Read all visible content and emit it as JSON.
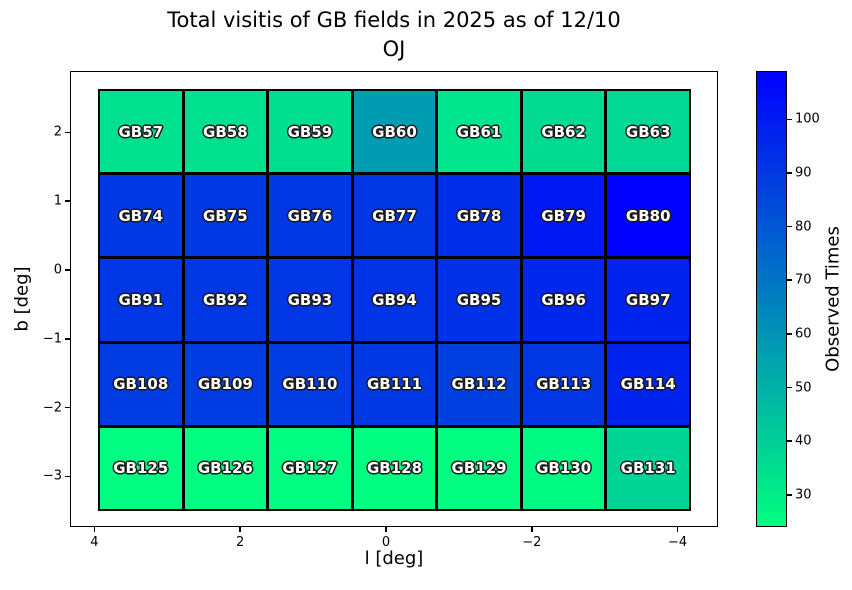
{
  "title": {
    "line1": "Total visitis of GB fields in 2025 as of 12/10",
    "line2": "OJ"
  },
  "axes": {
    "xlabel": "l [deg]",
    "ylabel": "b [deg]",
    "x_tick_labels": [
      "4",
      "2",
      "0",
      "−2",
      "−4"
    ],
    "y_tick_labels": [
      "2",
      "1",
      "0",
      "−1",
      "−2",
      "−3"
    ]
  },
  "colorbar": {
    "label": "Observed Times",
    "tick_labels": [
      "100",
      "90",
      "80",
      "70",
      "60",
      "50",
      "40",
      "30"
    ],
    "tick_values": [
      100,
      90,
      80,
      70,
      60,
      50,
      40,
      30
    ],
    "vmin": 24,
    "vmax": 109,
    "color_low": "#00ff80",
    "color_high": "#0000ff",
    "colormap": "winter_r"
  },
  "chart_data": {
    "type": "heatmap",
    "title": "Total visitis of GB fields in 2025 as of 12/10 OJ",
    "xlabel": "l [deg]",
    "ylabel": "b [deg]",
    "colorbar_label": "Observed Times",
    "colormap": "winter_r",
    "vmin": 24,
    "vmax": 109,
    "xlim": [
      4.3,
      -4.6
    ],
    "ylim": [
      -3.7,
      2.9
    ],
    "x_tick_values": [
      4,
      2,
      0,
      -2,
      -4
    ],
    "y_tick_values": [
      2,
      1,
      0,
      -1,
      -2,
      -3
    ],
    "grid_shape": [
      5,
      7
    ],
    "legend_position": "right-colorbar",
    "rows": [
      {
        "fields": [
          {
            "label": "GB57",
            "value": 34
          },
          {
            "label": "GB58",
            "value": 34
          },
          {
            "label": "GB59",
            "value": 35
          },
          {
            "label": "GB60",
            "value": 57
          },
          {
            "label": "GB61",
            "value": 33
          },
          {
            "label": "GB62",
            "value": 36
          },
          {
            "label": "GB63",
            "value": 37
          }
        ]
      },
      {
        "fields": [
          {
            "label": "GB74",
            "value": 90
          },
          {
            "label": "GB75",
            "value": 90
          },
          {
            "label": "GB76",
            "value": 90
          },
          {
            "label": "GB77",
            "value": 91
          },
          {
            "label": "GB78",
            "value": 94
          },
          {
            "label": "GB79",
            "value": 101
          },
          {
            "label": "GB80",
            "value": 109
          }
        ]
      },
      {
        "fields": [
          {
            "label": "GB91",
            "value": 91
          },
          {
            "label": "GB92",
            "value": 91
          },
          {
            "label": "GB93",
            "value": 91
          },
          {
            "label": "GB94",
            "value": 92
          },
          {
            "label": "GB95",
            "value": 93
          },
          {
            "label": "GB96",
            "value": 96
          },
          {
            "label": "GB97",
            "value": 97
          }
        ]
      },
      {
        "fields": [
          {
            "label": "GB108",
            "value": 89
          },
          {
            "label": "GB109",
            "value": 89
          },
          {
            "label": "GB110",
            "value": 89
          },
          {
            "label": "GB111",
            "value": 90
          },
          {
            "label": "GB112",
            "value": 88
          },
          {
            "label": "GB113",
            "value": 91
          },
          {
            "label": "GB114",
            "value": 97
          }
        ]
      },
      {
        "fields": [
          {
            "label": "GB125",
            "value": 25
          },
          {
            "label": "GB126",
            "value": 25
          },
          {
            "label": "GB127",
            "value": 25
          },
          {
            "label": "GB128",
            "value": 24
          },
          {
            "label": "GB129",
            "value": 25
          },
          {
            "label": "GB130",
            "value": 26
          },
          {
            "label": "GB131",
            "value": 38
          }
        ]
      }
    ]
  }
}
